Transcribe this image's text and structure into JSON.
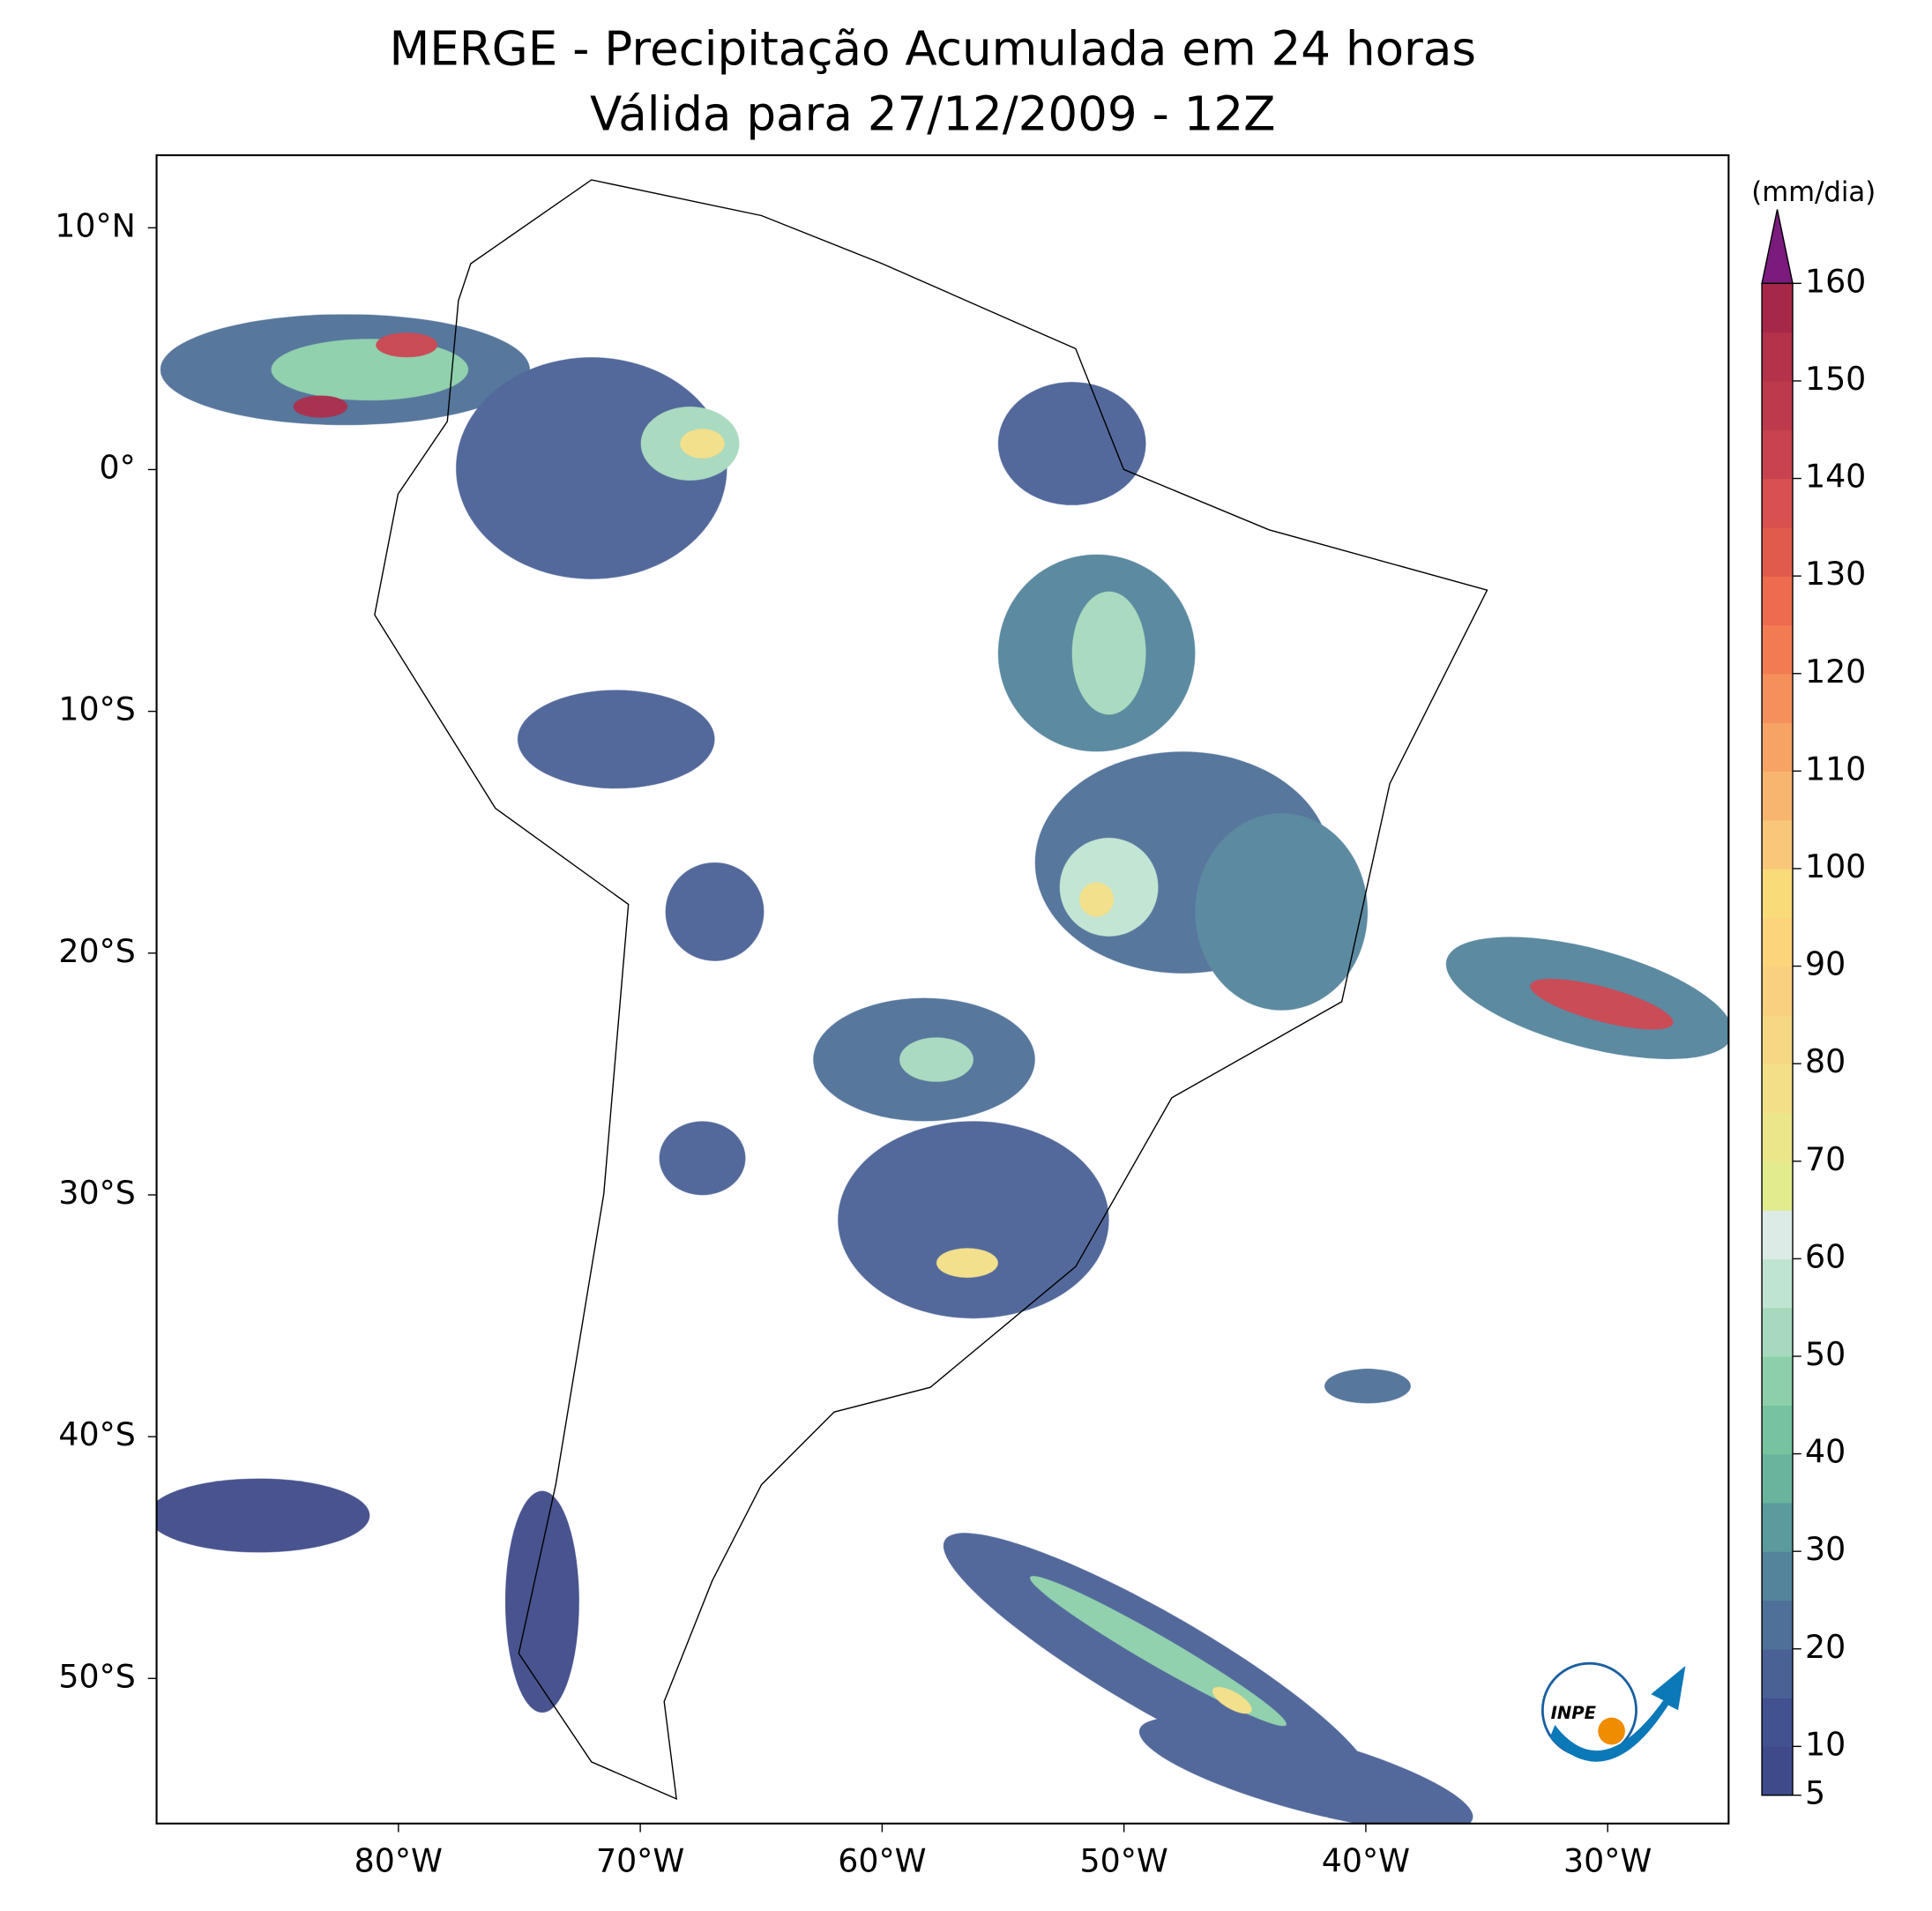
{
  "title": "MERGE - Precipitação Acumulada em 24 horas",
  "subtitle": "Válida para 27/12/2009 - 12Z",
  "map": {
    "xlim": [
      -90,
      -25
    ],
    "ylim": [
      -56,
      13
    ],
    "xticks": [
      {
        "value": -80,
        "label": "80°W"
      },
      {
        "value": -70,
        "label": "70°W"
      },
      {
        "value": -60,
        "label": "60°W"
      },
      {
        "value": -50,
        "label": "50°W"
      },
      {
        "value": -40,
        "label": "40°W"
      },
      {
        "value": -30,
        "label": "30°W"
      }
    ],
    "yticks": [
      {
        "value": 10,
        "label": "10°N"
      },
      {
        "value": 0,
        "label": "0°"
      },
      {
        "value": -10,
        "label": "10°S"
      },
      {
        "value": -20,
        "label": "20°S"
      },
      {
        "value": -30,
        "label": "30°S"
      },
      {
        "value": -40,
        "label": "40°S"
      },
      {
        "value": -50,
        "label": "50°S"
      }
    ]
  },
  "colorbar": {
    "unit": "(mm/dia)",
    "lim": [
      5,
      160
    ],
    "ticks": [
      5,
      10,
      20,
      30,
      40,
      50,
      60,
      70,
      80,
      90,
      100,
      110,
      120,
      130,
      140,
      150,
      160
    ],
    "colors": [
      "#3f4a8a",
      "#42518f",
      "#4a6196",
      "#4f7098",
      "#54849c",
      "#5b9a9d",
      "#6ab39c",
      "#77c39f",
      "#8ccfaa",
      "#a6d9bd",
      "#c0e4d2",
      "#dcebe5",
      "#e2ec8f",
      "#ece68b",
      "#f2df87",
      "#f6d884",
      "#f9d07f",
      "#fbd47c",
      "#fadb7a",
      "#f9c77a",
      "#f8b570",
      "#f6a365",
      "#f5905c",
      "#f27b52",
      "#ed6b4e",
      "#e15b4d",
      "#d8504f",
      "#c8434f",
      "#bd3a4d",
      "#b4324a",
      "#a62848"
    ],
    "extend_color": "#7b1b7e"
  },
  "logo": "INPE"
}
